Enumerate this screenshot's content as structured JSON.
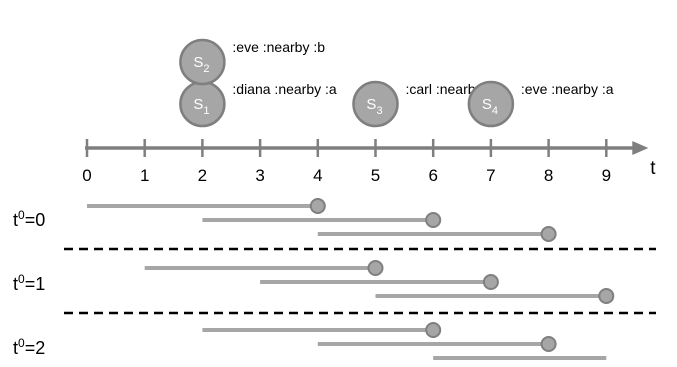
{
  "axis": {
    "letter": "t",
    "ticks": [
      0,
      1,
      2,
      3,
      4,
      5,
      6,
      7,
      8,
      9
    ]
  },
  "events": [
    {
      "sym": "S",
      "idx": "1",
      "time": 2,
      "level": 0,
      "label": ":diana :nearby :a"
    },
    {
      "sym": "S",
      "idx": "2",
      "time": 2,
      "level": 1,
      "label": ":eve :nearby :b"
    },
    {
      "sym": "S",
      "idx": "3",
      "time": 5,
      "level": 0,
      "label": ":carl :nearby :a"
    },
    {
      "sym": "S",
      "idx": "4",
      "time": 7,
      "level": 0,
      "label": ":eve :nearby :a"
    }
  ],
  "rows": [
    {
      "base": "t",
      "sup": "0",
      "value": "=0",
      "intervals": [
        {
          "start": 0,
          "end": 4,
          "marker": true
        },
        {
          "start": 2,
          "end": 6,
          "marker": true
        },
        {
          "start": 4,
          "end": 8,
          "marker": true
        }
      ]
    },
    {
      "base": "t",
      "sup": "0",
      "value": "=1",
      "intervals": [
        {
          "start": 1,
          "end": 5,
          "marker": true
        },
        {
          "start": 3,
          "end": 7,
          "marker": true
        },
        {
          "start": 5,
          "end": 9,
          "marker": true
        }
      ]
    },
    {
      "base": "t",
      "sup": "0",
      "value": "=2",
      "intervals": [
        {
          "start": 2,
          "end": 6,
          "marker": true
        },
        {
          "start": 4,
          "end": 8,
          "marker": true
        },
        {
          "start": 6,
          "end": 9,
          "marker": false
        }
      ]
    }
  ],
  "colors": {
    "axis": "#7f7f7f",
    "interval": "#a6a6a6",
    "marker_fill": "#a6a6a6",
    "marker_stroke": "#7f7f7f",
    "event_fill": "#a6a6a6",
    "event_stroke": "#7f7f7f",
    "separator": "#000000"
  }
}
